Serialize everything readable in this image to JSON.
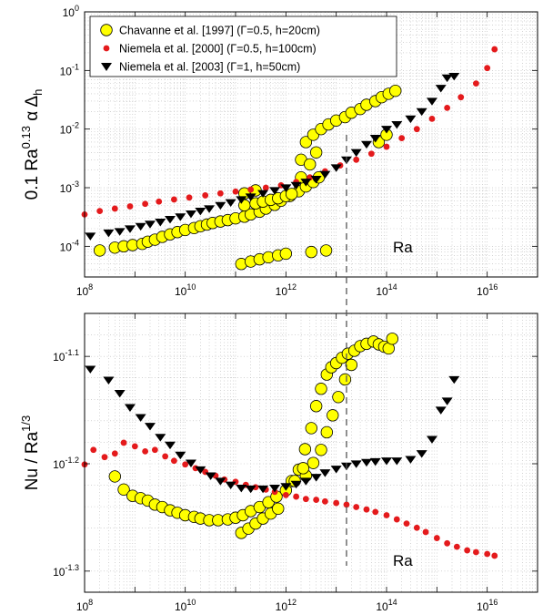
{
  "chart_data": [
    {
      "type": "scatter",
      "xscale": "log",
      "yscale": "log",
      "xlim": [
        100000000.0,
        1e+17
      ],
      "ylim": [
        3e-05,
        1
      ],
      "ylabel": "0.1 Ra^0.13 α Δ_h",
      "annotation": "Ra",
      "grid": true,
      "legend": {
        "position": "top-left",
        "entries": [
          "Chavanne et al. [1997] (Γ=0.5, h=20cm)",
          "Niemela et al. [2000] (Γ=0.5, h=100cm)",
          "Niemela et al. [2003] (Γ=1, h=50cm)"
        ]
      },
      "x_ticks": [
        "10^8",
        "10^10",
        "10^12",
        "10^14",
        "10^16"
      ],
      "y_ticks": [
        "10^-4",
        "10^-3",
        "10^-2",
        "10^-1",
        "10^0"
      ],
      "series": [
        {
          "name": "Chavanne et al. [1997] (Γ=0.5, h=20cm)",
          "marker": "circle",
          "color": "#ffff00",
          "x": [
            200000000.0,
            400000000.0,
            600000000.0,
            900000000.0,
            1400000000.0,
            1800000000.0,
            2500000000.0,
            3500000000.0,
            5000000000.0,
            7000000000.0,
            10000000000.0,
            15000000000.0,
            20000000000.0,
            27000000000.0,
            35000000000.0,
            50000000000.0,
            70000000000.0,
            100000000000.0,
            150000000000.0,
            200000000000.0,
            300000000000.0,
            400000000000.0,
            600000000000.0,
            800000000000.0,
            1200000000000.0,
            1800000000000.0,
            2500000000000.0,
            3500000000000.0,
            4500000000000.0,
            2000000000000.0,
            150000000000.0,
            250000000000.0,
            350000000000.0,
            500000000000.0,
            700000000000.0,
            1000000000000.0,
            1300000000000.0,
            2000000000000.0,
            3000000000000.0,
            4000000000000.0,
            2500000000000.0,
            3500000000000.0,
            5000000000000.0,
            7000000000000.0,
            10000000000000.0,
            15000000000000.0,
            20000000000000.0,
            30000000000000.0,
            40000000000000.0,
            60000000000000.0,
            80000000000000.0,
            110000000000000.0,
            150000000000000.0,
            70000000000000.0,
            100000000000000.0,
            130000000000.0,
            200000000000.0,
            300000000000.0,
            450000000000.0,
            700000000000.0,
            1000000000000.0,
            150000000000.0,
            250000000000.0,
            3200000000000.0,
            6300000000000.0
          ],
          "y": [
            8.5e-05,
            9.5e-05,
            0.0001,
            0.000105,
            0.00011,
            0.00012,
            0.00013,
            0.000145,
            0.00016,
            0.000175,
            0.00019,
            0.000205,
            0.00022,
            0.000235,
            0.00025,
            0.000265,
            0.00028,
            0.0003,
            0.00032,
            0.00035,
            0.00039,
            0.00044,
            0.00051,
            0.0006,
            0.00072,
            0.00087,
            0.00105,
            0.00125,
            0.0015,
            0.003,
            0.0005,
            0.00054,
            0.00058,
            0.00062,
            0.00066,
            0.00072,
            0.00078,
            0.0015,
            0.0025,
            0.004,
            0.006,
            0.008,
            0.01,
            0.012,
            0.014,
            0.016,
            0.019,
            0.022,
            0.026,
            0.03,
            0.035,
            0.04,
            0.045,
            0.006,
            0.008,
            5e-05,
            5.5e-05,
            6e-05,
            6.5e-05,
            7e-05,
            7.5e-05,
            0.0008,
            0.0009,
            8e-05,
            8.5e-05
          ]
        },
        {
          "name": "Niemela et al. [2000] (Γ=0.5, h=100cm)",
          "marker": "dot",
          "color": "#e41a1c",
          "x": [
            100000000.0,
            200000000.0,
            400000000.0,
            800000000.0,
            1600000000.0,
            3000000000.0,
            6000000000.0,
            12000000000.0,
            25000000000.0,
            50000000000.0,
            100000000000.0,
            200000000000.0,
            400000000000.0,
            800000000000.0,
            1600000000000.0,
            3000000000000.0,
            6000000000000.0,
            12000000000000.0,
            25000000000000.0,
            50000000000000.0,
            100000000000000.0,
            200000000000000.0,
            400000000000000.0,
            800000000000000.0,
            1600000000000000.0,
            3000000000000000.0,
            6000000000000000.0,
            1e+16,
            1.4e+16
          ],
          "y": [
            0.00035,
            0.0004,
            0.00044,
            0.00048,
            0.00053,
            0.00058,
            0.00063,
            0.00068,
            0.00074,
            0.0008,
            0.00086,
            0.00093,
            0.001,
            0.0011,
            0.00125,
            0.0015,
            0.0019,
            0.0024,
            0.003,
            0.0038,
            0.005,
            0.007,
            0.01,
            0.015,
            0.023,
            0.035,
            0.06,
            0.11,
            0.23
          ]
        },
        {
          "name": "Niemela et al. [2003] (Γ=1, h=50cm)",
          "marker": "triangle-down",
          "color": "#000000",
          "x": [
            130000000.0,
            300000000.0,
            500000000.0,
            800000000.0,
            1300000000.0,
            2000000000.0,
            3200000000.0,
            5000000000.0,
            8000000000.0,
            13000000000.0,
            20000000000.0,
            30000000000.0,
            50000000000.0,
            80000000000.0,
            130000000000.0,
            200000000000.0,
            350000000000.0,
            600000000000.0,
            1000000000000.0,
            1600000000000.0,
            2500000000000.0,
            4000000000000.0,
            6000000000000.0,
            10000000000000.0,
            16000000000000.0,
            25000000000000.0,
            40000000000000.0,
            60000000000000.0,
            100000000000000.0,
            160000000000000.0,
            300000000000000.0,
            500000000000000.0,
            800000000000000.0,
            1200000000000000.0,
            1600000000000000.0,
            2200000000000000.0
          ],
          "y": [
            0.00015,
            0.00017,
            0.00018,
            0.0002,
            0.00022,
            0.00024,
            0.00026,
            0.00029,
            0.00032,
            0.00036,
            0.0004,
            0.00044,
            0.0005,
            0.00056,
            0.00063,
            0.0007,
            0.0008,
            0.0009,
            0.001,
            0.0011,
            0.00125,
            0.0014,
            0.0017,
            0.0022,
            0.003,
            0.004,
            0.0055,
            0.007,
            0.01,
            0.012,
            0.015,
            0.02,
            0.03,
            0.05,
            0.075,
            0.08
          ]
        }
      ]
    },
    {
      "type": "scatter",
      "xscale": "log",
      "yscale": "log",
      "xlim": [
        100000000.0,
        1e+17
      ],
      "ylim": [
        0.0479,
        0.0871
      ],
      "ylabel": "Nu / Ra^1/3",
      "annotation": "Ra",
      "grid": true,
      "x_ticks": [
        "10^8",
        "10^10",
        "10^12",
        "10^14",
        "10^16"
      ],
      "y_ticks": [
        "10^-1.3",
        "10^-1.2",
        "10^-1.1"
      ],
      "series": [
        {
          "name": "Chavanne et al. [1997] (Γ=0.5, h=20cm)",
          "marker": "circle",
          "color": "#ffff00",
          "x": [
            400000000.0,
            600000000.0,
            900000000.0,
            1300000000.0,
            1800000000.0,
            2500000000.0,
            3500000000.0,
            5000000000.0,
            7000000000.0,
            10000000000.0,
            15000000000.0,
            20000000000.0,
            30000000000.0,
            45000000000.0,
            70000000000.0,
            100000000000.0,
            140000000000.0,
            200000000000.0,
            300000000000.0,
            450000000000.0,
            650000000000.0,
            1000000000000.0,
            1300000000000.0,
            1800000000000.0,
            2400000000000.0,
            3200000000000.0,
            4000000000000.0,
            5000000000000.0,
            6500000000000.0,
            8000000000000.0,
            10000000000000.0,
            13000000000000.0,
            17000000000000.0,
            23000000000000.0,
            30000000000000.0,
            40000000000000.0,
            55000000000000.0,
            70000000000000.0,
            90000000000000.0,
            110000000000000.0,
            130000000000000.0,
            2500000000000.0,
            3500000000000.0,
            5000000000000.0,
            6500000000000.0,
            8500000000000.0,
            11000000000000.0,
            15000000000000.0,
            20000000000000.0,
            130000000000.0,
            180000000000.0,
            250000000000.0,
            350000000000.0,
            500000000000.0,
            700000000000.0,
            1500000000000.0,
            2200000000000.0
          ],
          "y": [
            0.0614,
            0.0597,
            0.0589,
            0.0586,
            0.0583,
            0.0578,
            0.0575,
            0.0571,
            0.0568,
            0.0565,
            0.0563,
            0.0561,
            0.0559,
            0.0559,
            0.056,
            0.0562,
            0.0565,
            0.057,
            0.0575,
            0.0581,
            0.0588,
            0.0596,
            0.0608,
            0.0623,
            0.0651,
            0.0681,
            0.0714,
            0.0741,
            0.0764,
            0.0776,
            0.0783,
            0.0792,
            0.0799,
            0.0804,
            0.0812,
            0.0816,
            0.082,
            0.0815,
            0.0811,
            0.0808,
            0.0825,
            0.0615,
            0.0632,
            0.065,
            0.0675,
            0.07,
            0.0728,
            0.0756,
            0.078,
            0.0544,
            0.0549,
            0.0555,
            0.0561,
            0.0567,
            0.0573,
            0.0608,
            0.0625
          ]
        },
        {
          "name": "Niemela et al. [2000] (Γ=0.5, h=100cm)",
          "marker": "dot",
          "color": "#e41a1c",
          "x": [
            100000000.0,
            150000000.0,
            250000000.0,
            400000000.0,
            600000000.0,
            1000000000.0,
            1600000000.0,
            2500000000.0,
            4000000000.0,
            6000000000.0,
            10000000000.0,
            16000000000.0,
            25000000000.0,
            40000000000.0,
            60000000000.0,
            100000000000.0,
            160000000000.0,
            250000000000.0,
            400000000000.0,
            600000000000.0,
            1000000000000.0,
            1600000000000.0,
            2500000000000.0,
            4000000000000.0,
            6000000000000.0,
            10000000000000.0,
            16000000000000.0,
            25000000000000.0,
            40000000000000.0,
            60000000000000.0,
            100000000000000.0,
            160000000000000.0,
            250000000000000.0,
            400000000000000.0,
            600000000000000.0,
            1000000000000000.0,
            1600000000000000.0,
            2500000000000000.0,
            4000000000000000.0,
            6000000000000000.0,
            1e+16,
            1.4e+16
          ],
          "y": [
            0.063,
            0.065,
            0.064,
            0.0645,
            0.066,
            0.0655,
            0.0648,
            0.065,
            0.0641,
            0.0635,
            0.063,
            0.0625,
            0.062,
            0.0615,
            0.061,
            0.0607,
            0.0603,
            0.06,
            0.0597,
            0.0594,
            0.059,
            0.0588,
            0.0585,
            0.0584,
            0.0582,
            0.058,
            0.0578,
            0.0575,
            0.0572,
            0.0569,
            0.0565,
            0.056,
            0.0555,
            0.055,
            0.0545,
            0.0538,
            0.0532,
            0.0528,
            0.0524,
            0.0522,
            0.052,
            0.0518
          ]
        },
        {
          "name": "Niemela et al. [2003] (Γ=1, h=50cm)",
          "marker": "triangle-down",
          "color": "#000000",
          "x": [
            130000000.0,
            300000000.0,
            500000000.0,
            800000000.0,
            1300000000.0,
            2000000000.0,
            3200000000.0,
            5000000000.0,
            8000000000.0,
            13000000000.0,
            20000000000.0,
            32000000000.0,
            50000000000.0,
            80000000000.0,
            130000000000.0,
            200000000000.0,
            350000000000.0,
            600000000000.0,
            1000000000000.0,
            1600000000000.0,
            2500000000000.0,
            4000000000000.0,
            6000000000000.0,
            10000000000000.0,
            16000000000000.0,
            25000000000000.0,
            40000000000000.0,
            60000000000000.0,
            100000000000000.0,
            160000000000000.0,
            300000000000000.0,
            500000000000000.0,
            800000000000000.0,
            1200000000000000.0,
            1600000000000000.0,
            2200000000000000.0
          ],
          "y": [
            0.0773,
            0.0755,
            0.0734,
            0.0712,
            0.0697,
            0.0684,
            0.0668,
            0.0657,
            0.0643,
            0.0632,
            0.0623,
            0.0615,
            0.0608,
            0.0603,
            0.0599,
            0.0598,
            0.0598,
            0.0599,
            0.0601,
            0.0604,
            0.0608,
            0.0613,
            0.0619,
            0.0624,
            0.0628,
            0.0631,
            0.0633,
            0.0634,
            0.0635,
            0.0635,
            0.0637,
            0.0645,
            0.0665,
            0.0708,
            0.0722,
            0.0756
          ]
        }
      ]
    }
  ]
}
